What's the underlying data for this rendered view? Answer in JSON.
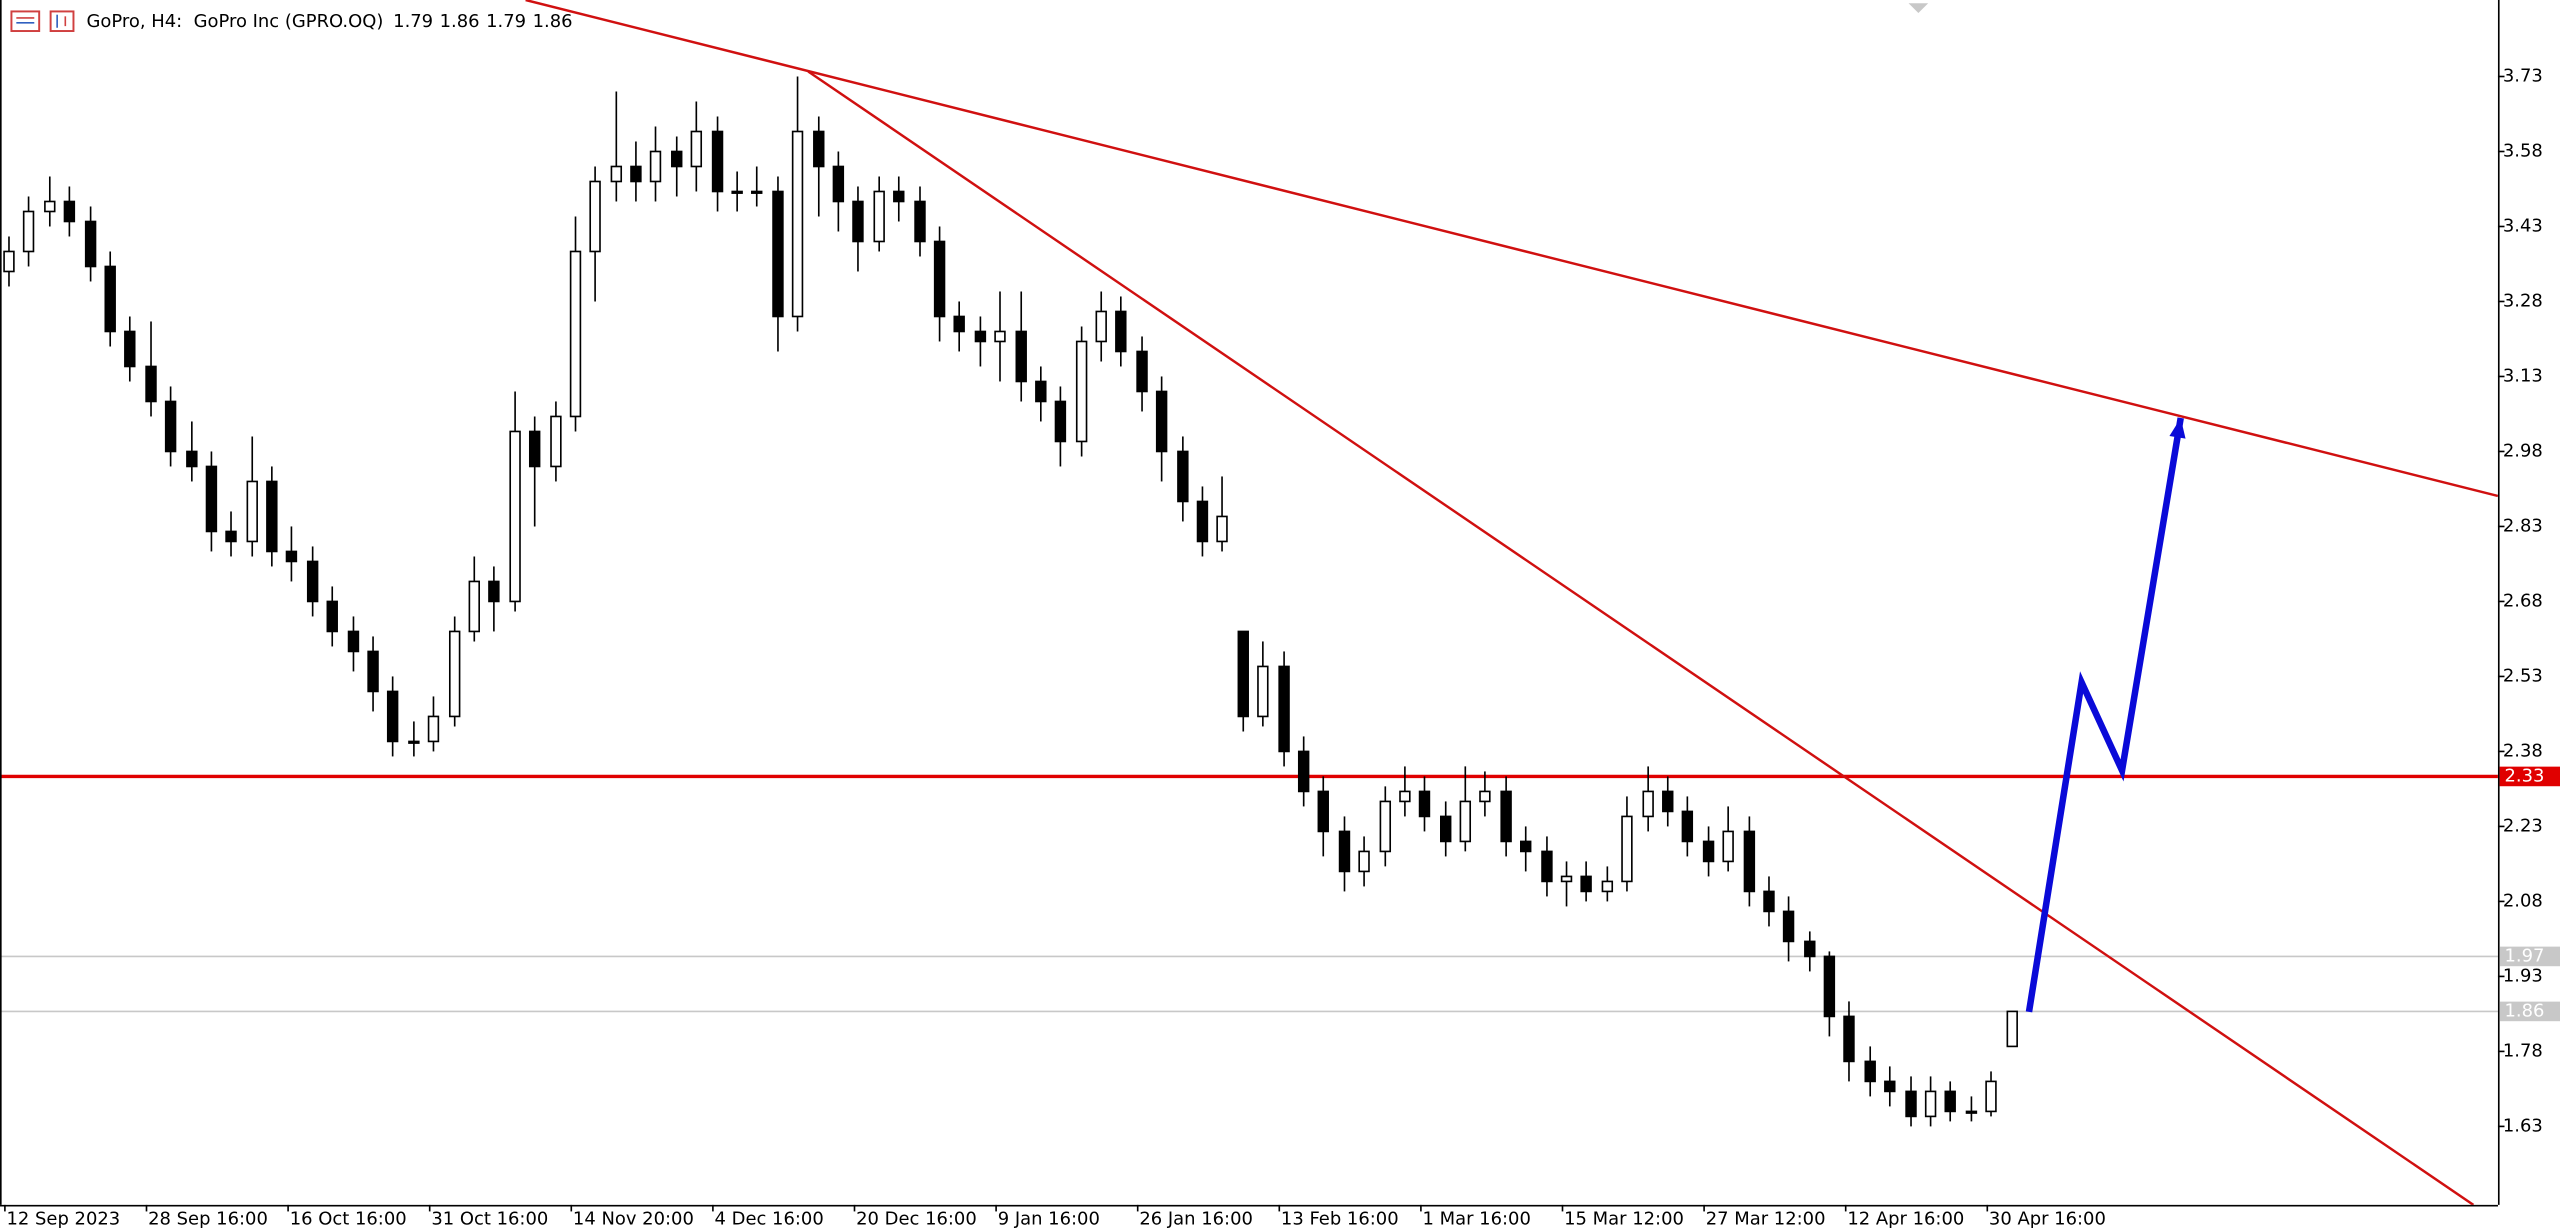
{
  "chart_data": {
    "type": "candlestick",
    "title": "GoPro, H4:  GoPro Inc (GPRO.OQ)",
    "categories": [
      "12 Sep 2023",
      null,
      null,
      null,
      null,
      null,
      null,
      "28 Sep 16:00",
      null,
      null,
      null,
      null,
      null,
      null,
      "16 Oct 16:00",
      null,
      null,
      null,
      null,
      null,
      null,
      "31 Oct 16:00",
      null,
      null,
      null,
      null,
      null,
      null,
      "14 Nov 20:00",
      null,
      null,
      null,
      null,
      null,
      null,
      "4 Dec 16:00",
      null,
      null,
      null,
      null,
      null,
      null,
      "20 Dec 16:00",
      null,
      null,
      null,
      null,
      null,
      null,
      "9 Jan 16:00",
      null,
      null,
      null,
      null,
      null,
      null,
      "26 Jan 16:00",
      null,
      null,
      null,
      null,
      null,
      null,
      "13 Feb 16:00",
      null,
      null,
      null,
      null,
      null,
      null,
      "1 Mar 16:00",
      null,
      null,
      null,
      null,
      null,
      null,
      "15 Mar 12:00",
      null,
      null,
      null,
      null,
      null,
      null,
      "27 Mar 12:00",
      null,
      null,
      null,
      null,
      null,
      null,
      "12 Apr 16:00",
      null,
      null,
      null,
      null,
      null,
      null,
      "30 Apr 16:00",
      null
    ],
    "open": [
      3.34,
      3.38,
      3.46,
      3.48,
      3.44,
      3.35,
      3.22,
      3.15,
      3.08,
      2.98,
      2.95,
      2.82,
      2.8,
      2.92,
      2.78,
      2.76,
      2.68,
      2.62,
      2.58,
      2.5,
      2.4,
      2.4,
      2.45,
      2.62,
      2.72,
      2.68,
      3.02,
      2.95,
      3.05,
      3.38,
      3.52,
      3.55,
      3.52,
      3.58,
      3.55,
      3.62,
      3.5,
      3.5,
      3.5,
      3.25,
      3.62,
      3.55,
      3.48,
      3.4,
      3.5,
      3.48,
      3.4,
      3.25,
      3.22,
      3.2,
      3.22,
      3.12,
      3.08,
      3.0,
      3.2,
      3.26,
      3.18,
      3.1,
      2.98,
      2.88,
      2.8,
      2.62,
      2.45,
      2.55,
      2.38,
      2.3,
      2.22,
      2.14,
      2.18,
      2.28,
      2.3,
      2.25,
      2.2,
      2.28,
      2.3,
      2.2,
      2.18,
      2.12,
      2.13,
      2.1,
      2.12,
      2.25,
      2.3,
      2.26,
      2.2,
      2.16,
      2.22,
      2.1,
      2.06,
      2.0,
      1.97,
      1.85,
      1.76,
      1.72,
      1.7,
      1.65,
      1.7,
      1.66,
      1.66,
      1.79
    ],
    "high": [
      3.41,
      3.49,
      3.53,
      3.51,
      3.47,
      3.38,
      3.25,
      3.24,
      3.11,
      3.04,
      2.98,
      2.86,
      3.01,
      2.95,
      2.83,
      2.79,
      2.71,
      2.65,
      2.61,
      2.53,
      2.44,
      2.49,
      2.65,
      2.77,
      2.75,
      3.1,
      3.05,
      3.08,
      3.45,
      3.55,
      3.7,
      3.6,
      3.63,
      3.61,
      3.68,
      3.65,
      3.54,
      3.55,
      3.53,
      3.73,
      3.65,
      3.58,
      3.51,
      3.53,
      3.53,
      3.51,
      3.43,
      3.28,
      3.25,
      3.3,
      3.3,
      3.15,
      3.11,
      3.23,
      3.3,
      3.29,
      3.21,
      3.13,
      3.01,
      2.91,
      2.93,
      2.62,
      2.6,
      2.58,
      2.41,
      2.33,
      2.25,
      2.21,
      2.31,
      2.35,
      2.33,
      2.28,
      2.35,
      2.34,
      2.33,
      2.23,
      2.21,
      2.16,
      2.16,
      2.15,
      2.29,
      2.35,
      2.33,
      2.29,
      2.23,
      2.27,
      2.25,
      2.13,
      2.09,
      2.02,
      1.98,
      1.88,
      1.79,
      1.75,
      1.73,
      1.73,
      1.72,
      1.69,
      1.74,
      1.86
    ],
    "low": [
      3.31,
      3.35,
      3.43,
      3.41,
      3.32,
      3.19,
      3.12,
      3.05,
      2.95,
      2.92,
      2.78,
      2.77,
      2.77,
      2.75,
      2.72,
      2.65,
      2.59,
      2.54,
      2.46,
      2.37,
      2.37,
      2.38,
      2.43,
      2.6,
      2.62,
      2.66,
      2.83,
      2.92,
      3.02,
      3.28,
      3.48,
      3.48,
      3.48,
      3.49,
      3.5,
      3.46,
      3.46,
      3.47,
      3.18,
      3.22,
      3.45,
      3.42,
      3.34,
      3.38,
      3.44,
      3.37,
      3.2,
      3.18,
      3.15,
      3.12,
      3.08,
      3.04,
      2.95,
      2.97,
      3.16,
      3.15,
      3.06,
      2.92,
      2.84,
      2.77,
      2.78,
      2.42,
      2.43,
      2.35,
      2.27,
      2.17,
      2.1,
      2.11,
      2.15,
      2.25,
      2.22,
      2.17,
      2.18,
      2.25,
      2.17,
      2.14,
      2.09,
      2.07,
      2.08,
      2.08,
      2.1,
      2.22,
      2.23,
      2.17,
      2.13,
      2.14,
      2.07,
      2.03,
      1.96,
      1.94,
      1.81,
      1.72,
      1.69,
      1.67,
      1.63,
      1.63,
      1.64,
      1.64,
      1.65,
      1.79
    ],
    "close": [
      3.38,
      3.46,
      3.48,
      3.44,
      3.35,
      3.22,
      3.15,
      3.08,
      2.98,
      2.95,
      2.82,
      2.8,
      2.92,
      2.78,
      2.76,
      2.68,
      2.62,
      2.58,
      2.5,
      2.4,
      2.4,
      2.45,
      2.62,
      2.72,
      2.68,
      3.02,
      2.95,
      3.05,
      3.38,
      3.52,
      3.55,
      3.52,
      3.58,
      3.55,
      3.62,
      3.5,
      3.5,
      3.5,
      3.25,
      3.62,
      3.55,
      3.48,
      3.4,
      3.5,
      3.48,
      3.4,
      3.25,
      3.22,
      3.2,
      3.22,
      3.12,
      3.08,
      3.0,
      3.2,
      3.26,
      3.18,
      3.1,
      2.98,
      2.88,
      2.8,
      2.85,
      2.45,
      2.55,
      2.38,
      2.3,
      2.22,
      2.14,
      2.18,
      2.28,
      2.3,
      2.25,
      2.2,
      2.28,
      2.3,
      2.2,
      2.18,
      2.12,
      2.13,
      2.1,
      2.12,
      2.25,
      2.3,
      2.26,
      2.2,
      2.16,
      2.22,
      2.1,
      2.06,
      2.0,
      1.97,
      1.85,
      1.76,
      1.72,
      1.7,
      1.65,
      1.7,
      1.66,
      1.66,
      1.72,
      1.86
    ],
    "ylim": [
      1.473,
      3.883
    ],
    "yticks": [
      3.73,
      3.58,
      3.43,
      3.28,
      3.13,
      2.98,
      2.83,
      2.68,
      2.53,
      2.38,
      2.23,
      2.08,
      1.93,
      1.78,
      1.63
    ],
    "hlines": [
      {
        "value": 2.33,
        "color": "#e00000"
      },
      {
        "value": 1.97,
        "color": "#c8c8c8"
      },
      {
        "value": 1.86,
        "color": "#c8c8c8"
      }
    ],
    "trendlines": [
      {
        "x": [
          25.58,
          123.08
        ],
        "y": [
          3.883,
          2.891
        ],
        "color": "#d01010"
      },
      {
        "x": [
          39.55,
          121.87
        ],
        "y": [
          3.74,
          1.473
        ],
        "color": "#d01010"
      }
    ],
    "arrow": {
      "x": [
        99.9,
        102.5,
        104.5,
        107.4
      ],
      "y": [
        1.859,
        2.518,
        2.342,
        3.047
      ],
      "color": "#0a0ad8"
    }
  }
}
